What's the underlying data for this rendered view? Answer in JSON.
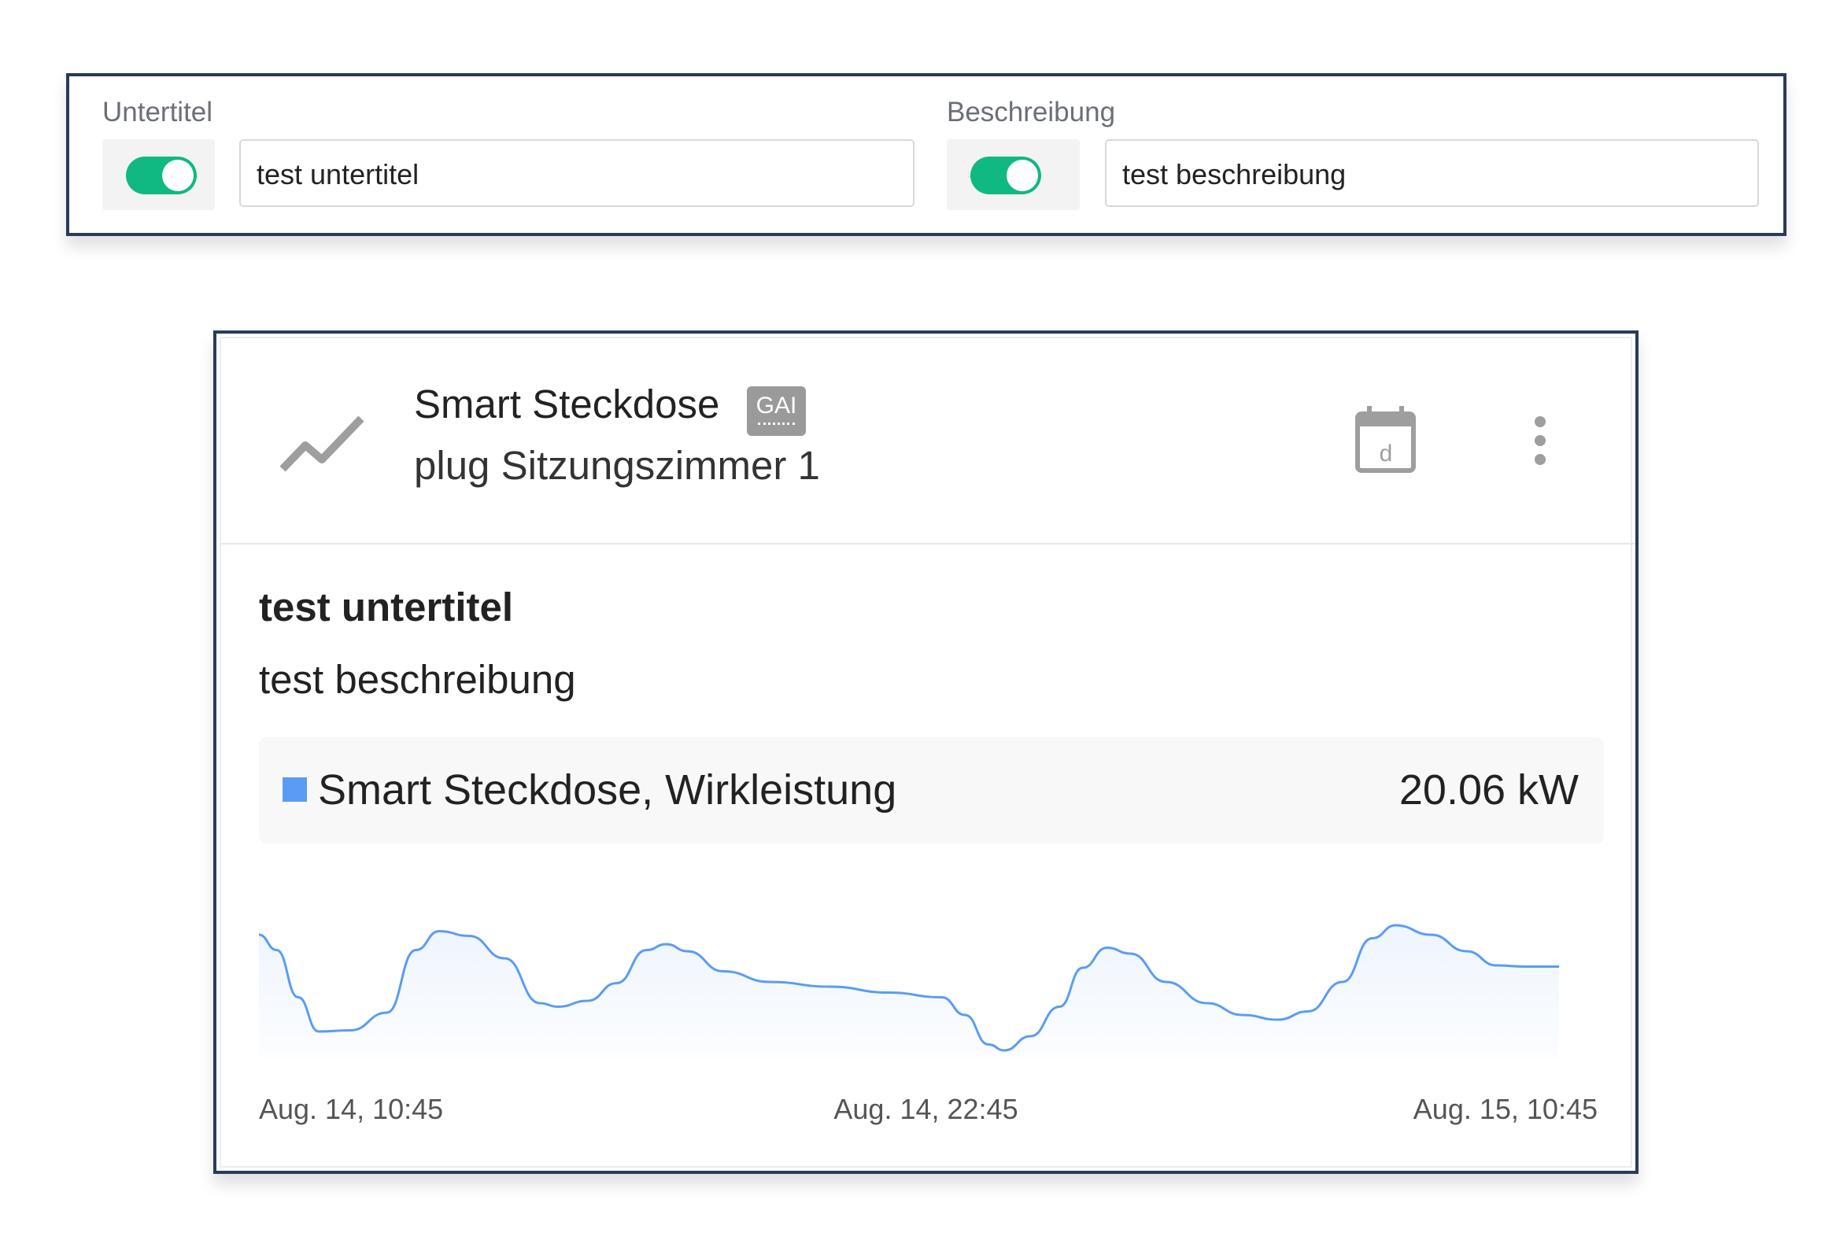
{
  "settings": {
    "subtitle_field": {
      "label": "Untertitel",
      "enabled": true,
      "value": "test untertitel"
    },
    "description_field": {
      "label": "Beschreibung",
      "enabled": true,
      "value": "test beschreibung"
    }
  },
  "card": {
    "icon": "trend-line-icon",
    "title": "Smart Steckdose",
    "badge": "GAI",
    "subtitle": "plug Sitzungszimmer 1",
    "calendar_icon_letter": "d",
    "body_subtitle": "test untertitel",
    "body_description": "test beschreibung",
    "legend": {
      "label": "Smart Steckdose, Wirkleistung",
      "value": "20.06 kW",
      "color": "#5a9cf5"
    }
  },
  "colors": {
    "toggle_on": "#10b981",
    "border": "#2a3a5c",
    "line": "#5a9cf5"
  },
  "chart_data": {
    "type": "area",
    "x_range": [
      "Aug. 14, 10:45",
      "Aug. 15, 10:45"
    ],
    "x_tick_labels": [
      "Aug. 14, 10:45",
      "Aug. 14, 22:45",
      "Aug. 15, 10:45"
    ],
    "y_axis_shown": false,
    "series": [
      {
        "name": "Smart Steckdose, Wirkleistung",
        "x": [
          "Aug. 14, 10:45",
          "Aug. 14, 11:04",
          "Aug. 14, 11:27",
          "Aug. 14, 11:49",
          "Aug. 14, 12:23",
          "Aug. 14, 13:02",
          "Aug. 14, 13:33",
          "Aug. 14, 13:58",
          "Aug. 14, 14:30",
          "Aug. 14, 15:08",
          "Aug. 14, 15:46",
          "Aug. 14, 16:05",
          "Aug. 14, 16:37",
          "Aug. 14, 17:08",
          "Aug. 14, 17:40",
          "Aug. 14, 18:01",
          "Aug. 14, 18:24",
          "Aug. 14, 19:02",
          "Aug. 14, 19:52",
          "Aug. 14, 20:56",
          "Aug. 14, 21:59",
          "Aug. 14, 22:56",
          "Aug. 14, 23:21",
          "Aug. 14, 23:46",
          "Aug. 15, 00:03",
          "Aug. 15, 00:31",
          "Aug. 15, 01:02",
          "Aug. 15, 01:27",
          "Aug. 15, 01:53",
          "Aug. 15, 02:18",
          "Aug. 15, 02:56",
          "Aug. 15, 03:40",
          "Aug. 15, 04:18",
          "Aug. 15, 04:56",
          "Aug. 15, 05:28",
          "Aug. 15, 06:05",
          "Aug. 15, 06:37",
          "Aug. 15, 07:02",
          "Aug. 15, 07:40",
          "Aug. 15, 08:18",
          "Aug. 15, 08:50",
          "Aug. 15, 09:21",
          "Aug. 15, 09:57"
        ],
        "relative_level": [
          108,
          95,
          55,
          26,
          27,
          42,
          95,
          111,
          107,
          88,
          50,
          47,
          52,
          67,
          95,
          100,
          94,
          77,
          68,
          64,
          59,
          55,
          40,
          15,
          10,
          22,
          47,
          80,
          97,
          92,
          68,
          50,
          40,
          36,
          43,
          68,
          105,
          116,
          108,
          94,
          82,
          81,
          81
        ]
      }
    ]
  }
}
